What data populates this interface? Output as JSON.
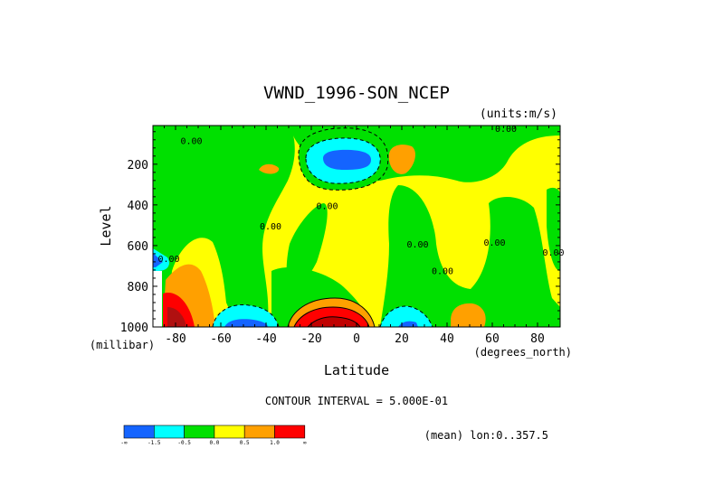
{
  "chart_data": {
    "type": "heatmap",
    "title": "VWND_1996-SON_NCEP",
    "units_label": "(units:m/s)",
    "xlabel": "Latitude",
    "ylabel": "Level",
    "x_units": "(degrees_north)",
    "y_units": "(millibar)",
    "xlim": [
      -90,
      90
    ],
    "ylim": [
      1000,
      10
    ],
    "y_reversed": true,
    "x_ticks": [
      {
        "value": -80,
        "label": "-80"
      },
      {
        "value": -60,
        "label": "-60"
      },
      {
        "value": -40,
        "label": "-40"
      },
      {
        "value": -20,
        "label": "-20"
      },
      {
        "value": 0,
        "label": "0"
      },
      {
        "value": 20,
        "label": "20"
      },
      {
        "value": 40,
        "label": "40"
      },
      {
        "value": 60,
        "label": "60"
      },
      {
        "value": 80,
        "label": "80"
      }
    ],
    "y_ticks": [
      {
        "value": 200,
        "label": "200"
      },
      {
        "value": 400,
        "label": "400"
      },
      {
        "value": 600,
        "label": "600"
      },
      {
        "value": 800,
        "label": "800"
      },
      {
        "value": 1000,
        "label": "1000"
      }
    ],
    "contour_interval_text": "CONTOUR INTERVAL = 5.000E-01",
    "footer_text": "(mean) lon:0..357.5",
    "contour_labels": [
      {
        "text": "0.00",
        "lat": 66,
        "lev": 40
      },
      {
        "text": "0.00",
        "lat": -73,
        "lev": 100
      },
      {
        "text": "0.00",
        "lat": -38,
        "lev": 520
      },
      {
        "text": "0.00",
        "lat": -13,
        "lev": 420
      },
      {
        "text": "0.00",
        "lat": 27,
        "lev": 610
      },
      {
        "text": "0.00",
        "lat": 38,
        "lev": 740
      },
      {
        "text": "0.00",
        "lat": 61,
        "lev": 600
      },
      {
        "text": "0.00",
        "lat": 87,
        "lev": 650
      },
      {
        "text": "0.00",
        "lat": -83,
        "lev": 680
      }
    ],
    "colorbar": {
      "colors": [
        "#1464ff",
        "#00ffff",
        "#00e000",
        "#ffff00",
        "#ffa000",
        "#ff0000"
      ],
      "boundaries": [
        "-∞",
        "-1.5",
        "-0.5",
        "0.0",
        "0.5",
        "1.0",
        "∞"
      ]
    },
    "regions": [
      {
        "name": "background-positive",
        "value": "0.0 to 0.5",
        "color": "#ffff00"
      },
      {
        "name": "sh-mid-negative",
        "value": "-0.5 to 0.0",
        "color": "#00e000"
      },
      {
        "name": "tropical-upper-jet-minimum",
        "value": "< -1.5",
        "color": "#1464ff",
        "lat": [
          -10,
          5
        ],
        "lev": [
          150,
          230
        ]
      },
      {
        "name": "equatorial-surface-maximum",
        "value": "> 1.5",
        "color": "#ff0000",
        "lat": [
          -20,
          8
        ],
        "lev": [
          900,
          1000
        ]
      },
      {
        "name": "south-pole-surface-maximum",
        "value": "> 1.5",
        "color": "#ff0000",
        "lat": [
          -89,
          -78
        ],
        "lev": [
          830,
          1000
        ]
      },
      {
        "name": "subtropical-sh-surface-minimum",
        "value": "< -1.5",
        "color": "#1464ff",
        "lat": [
          -60,
          -44
        ],
        "lev": [
          980,
          1000
        ]
      },
      {
        "name": "nh-surface-positive",
        "value": "0.5 to 1.0",
        "color": "#ffa000",
        "lat": [
          45,
          58
        ],
        "lev": [
          900,
          1000
        ]
      }
    ]
  }
}
